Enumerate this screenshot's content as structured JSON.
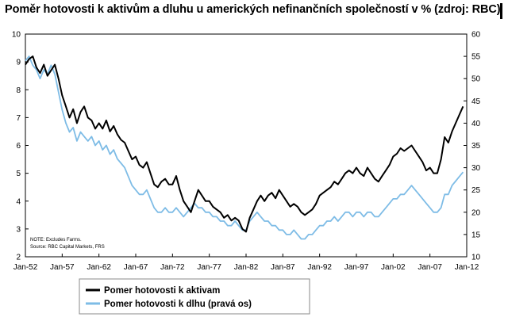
{
  "title": "Poměr hotovosti k aktivům a dluhu u amerických nefinančních společností v % (zdroj: RBC)",
  "chart_data": {
    "type": "line",
    "xlabel": "",
    "ylabel": "",
    "x_range": [
      1952,
      2012
    ],
    "x_ticks": [
      "Jan-52",
      "Jan-57",
      "Jan-62",
      "Jan-67",
      "Jan-72",
      "Jan-77",
      "Jan-82",
      "Jan-87",
      "Jan-92",
      "Jan-97",
      "Jan-02",
      "Jan-07",
      "Jan-12"
    ],
    "ylim_left": [
      2,
      10
    ],
    "ylim_right": [
      10,
      60
    ],
    "y_ticks_left": [
      "2",
      "3",
      "4",
      "5",
      "6",
      "7",
      "8",
      "9",
      "10"
    ],
    "y_ticks_right": [
      "10",
      "15",
      "20",
      "25",
      "30",
      "35",
      "40",
      "45",
      "50",
      "55",
      "60"
    ],
    "grid": false,
    "legend_position": "bottom-center",
    "note_lines": [
      "NOTE: Excludes Farms.",
      "Source: RBC Capital Markets, FRS"
    ],
    "series": [
      {
        "name": "Pomer hotovosti k aktivam",
        "axis": "left",
        "color": "#000000",
        "points": [
          [
            1952.0,
            8.9
          ],
          [
            1952.5,
            9.1
          ],
          [
            1953.0,
            9.2
          ],
          [
            1953.5,
            8.8
          ],
          [
            1954.0,
            8.6
          ],
          [
            1954.5,
            8.9
          ],
          [
            1955.0,
            8.5
          ],
          [
            1955.5,
            8.7
          ],
          [
            1956.0,
            8.9
          ],
          [
            1956.5,
            8.4
          ],
          [
            1957.0,
            7.8
          ],
          [
            1957.5,
            7.4
          ],
          [
            1958.0,
            7.0
          ],
          [
            1958.5,
            7.3
          ],
          [
            1959.0,
            6.8
          ],
          [
            1959.5,
            7.2
          ],
          [
            1960.0,
            7.4
          ],
          [
            1960.5,
            7.0
          ],
          [
            1961.0,
            6.9
          ],
          [
            1961.5,
            6.6
          ],
          [
            1962.0,
            6.8
          ],
          [
            1962.5,
            6.6
          ],
          [
            1963.0,
            6.9
          ],
          [
            1963.5,
            6.5
          ],
          [
            1964.0,
            6.7
          ],
          [
            1964.5,
            6.4
          ],
          [
            1965.0,
            6.2
          ],
          [
            1965.5,
            6.1
          ],
          [
            1966.0,
            5.8
          ],
          [
            1966.5,
            5.5
          ],
          [
            1967.0,
            5.6
          ],
          [
            1967.5,
            5.3
          ],
          [
            1968.0,
            5.2
          ],
          [
            1968.5,
            5.4
          ],
          [
            1969.0,
            5.0
          ],
          [
            1969.5,
            4.6
          ],
          [
            1970.0,
            4.5
          ],
          [
            1970.5,
            4.7
          ],
          [
            1971.0,
            4.8
          ],
          [
            1971.5,
            4.6
          ],
          [
            1972.0,
            4.6
          ],
          [
            1972.5,
            4.9
          ],
          [
            1973.0,
            4.4
          ],
          [
            1973.5,
            4.0
          ],
          [
            1974.0,
            3.8
          ],
          [
            1974.5,
            3.6
          ],
          [
            1975.0,
            4.0
          ],
          [
            1975.5,
            4.4
          ],
          [
            1976.0,
            4.2
          ],
          [
            1976.5,
            4.0
          ],
          [
            1977.0,
            4.0
          ],
          [
            1977.5,
            3.8
          ],
          [
            1978.0,
            3.7
          ],
          [
            1978.5,
            3.6
          ],
          [
            1979.0,
            3.4
          ],
          [
            1979.5,
            3.5
          ],
          [
            1980.0,
            3.3
          ],
          [
            1980.5,
            3.4
          ],
          [
            1981.0,
            3.3
          ],
          [
            1981.5,
            3.0
          ],
          [
            1982.0,
            2.9
          ],
          [
            1982.5,
            3.4
          ],
          [
            1983.0,
            3.7
          ],
          [
            1983.5,
            4.0
          ],
          [
            1984.0,
            4.2
          ],
          [
            1984.5,
            4.0
          ],
          [
            1985.0,
            4.2
          ],
          [
            1985.5,
            4.3
          ],
          [
            1986.0,
            4.1
          ],
          [
            1986.5,
            4.4
          ],
          [
            1987.0,
            4.2
          ],
          [
            1987.5,
            4.0
          ],
          [
            1988.0,
            3.8
          ],
          [
            1988.5,
            3.9
          ],
          [
            1989.0,
            3.8
          ],
          [
            1989.5,
            3.6
          ],
          [
            1990.0,
            3.5
          ],
          [
            1990.5,
            3.6
          ],
          [
            1991.0,
            3.7
          ],
          [
            1991.5,
            3.9
          ],
          [
            1992.0,
            4.2
          ],
          [
            1992.5,
            4.3
          ],
          [
            1993.0,
            4.4
          ],
          [
            1993.5,
            4.5
          ],
          [
            1994.0,
            4.7
          ],
          [
            1994.5,
            4.6
          ],
          [
            1995.0,
            4.8
          ],
          [
            1995.5,
            5.0
          ],
          [
            1996.0,
            5.1
          ],
          [
            1996.5,
            5.0
          ],
          [
            1997.0,
            5.2
          ],
          [
            1997.5,
            5.0
          ],
          [
            1998.0,
            4.9
          ],
          [
            1998.5,
            5.2
          ],
          [
            1999.0,
            5.0
          ],
          [
            1999.5,
            4.8
          ],
          [
            2000.0,
            4.7
          ],
          [
            2000.5,
            4.9
          ],
          [
            2001.0,
            5.1
          ],
          [
            2001.5,
            5.3
          ],
          [
            2002.0,
            5.6
          ],
          [
            2002.5,
            5.7
          ],
          [
            2003.0,
            5.9
          ],
          [
            2003.5,
            5.8
          ],
          [
            2004.0,
            5.9
          ],
          [
            2004.5,
            6.0
          ],
          [
            2005.0,
            5.8
          ],
          [
            2005.5,
            5.6
          ],
          [
            2006.0,
            5.4
          ],
          [
            2006.5,
            5.1
          ],
          [
            2007.0,
            5.2
          ],
          [
            2007.5,
            5.0
          ],
          [
            2008.0,
            5.0
          ],
          [
            2008.5,
            5.5
          ],
          [
            2009.0,
            6.3
          ],
          [
            2009.5,
            6.1
          ],
          [
            2010.0,
            6.5
          ],
          [
            2010.5,
            6.8
          ],
          [
            2011.0,
            7.1
          ],
          [
            2011.5,
            7.4
          ]
        ]
      },
      {
        "name": "Pomer hotovosti k dlhu (pravá os)",
        "axis": "right",
        "color": "#7ebce6",
        "points": [
          [
            1952.0,
            54
          ],
          [
            1952.5,
            55
          ],
          [
            1953.0,
            53
          ],
          [
            1953.5,
            52
          ],
          [
            1954.0,
            50
          ],
          [
            1954.5,
            52
          ],
          [
            1955.0,
            51
          ],
          [
            1955.5,
            53
          ],
          [
            1956.0,
            51
          ],
          [
            1956.5,
            47
          ],
          [
            1957.0,
            43
          ],
          [
            1957.5,
            40
          ],
          [
            1958.0,
            38
          ],
          [
            1958.5,
            39
          ],
          [
            1959.0,
            36
          ],
          [
            1959.5,
            38
          ],
          [
            1960.0,
            37
          ],
          [
            1960.5,
            36
          ],
          [
            1961.0,
            37
          ],
          [
            1961.5,
            35
          ],
          [
            1962.0,
            36
          ],
          [
            1962.5,
            34
          ],
          [
            1963.0,
            35
          ],
          [
            1963.5,
            33
          ],
          [
            1964.0,
            34
          ],
          [
            1964.5,
            32
          ],
          [
            1965.0,
            31
          ],
          [
            1965.5,
            30
          ],
          [
            1966.0,
            28
          ],
          [
            1966.5,
            26
          ],
          [
            1967.0,
            25
          ],
          [
            1967.5,
            24
          ],
          [
            1968.0,
            24
          ],
          [
            1968.5,
            25
          ],
          [
            1969.0,
            23
          ],
          [
            1969.5,
            21
          ],
          [
            1970.0,
            20
          ],
          [
            1970.5,
            20
          ],
          [
            1971.0,
            21
          ],
          [
            1971.5,
            20
          ],
          [
            1972.0,
            20
          ],
          [
            1972.5,
            21
          ],
          [
            1973.0,
            20
          ],
          [
            1973.5,
            19
          ],
          [
            1974.0,
            20
          ],
          [
            1974.5,
            21
          ],
          [
            1975.0,
            22
          ],
          [
            1975.5,
            21
          ],
          [
            1976.0,
            21
          ],
          [
            1976.5,
            20
          ],
          [
            1977.0,
            20
          ],
          [
            1977.5,
            19
          ],
          [
            1978.0,
            19
          ],
          [
            1978.5,
            18
          ],
          [
            1979.0,
            18
          ],
          [
            1979.5,
            17
          ],
          [
            1980.0,
            17
          ],
          [
            1980.5,
            18
          ],
          [
            1981.0,
            17
          ],
          [
            1981.5,
            16
          ],
          [
            1982.0,
            16
          ],
          [
            1982.5,
            18
          ],
          [
            1983.0,
            19
          ],
          [
            1983.5,
            20
          ],
          [
            1984.0,
            19
          ],
          [
            1984.5,
            18
          ],
          [
            1985.0,
            18
          ],
          [
            1985.5,
            17
          ],
          [
            1986.0,
            17
          ],
          [
            1986.5,
            16
          ],
          [
            1987.0,
            16
          ],
          [
            1987.5,
            15
          ],
          [
            1988.0,
            15
          ],
          [
            1988.5,
            16
          ],
          [
            1989.0,
            15
          ],
          [
            1989.5,
            14
          ],
          [
            1990.0,
            14
          ],
          [
            1990.5,
            15
          ],
          [
            1991.0,
            15
          ],
          [
            1991.5,
            16
          ],
          [
            1992.0,
            17
          ],
          [
            1992.5,
            17
          ],
          [
            1993.0,
            18
          ],
          [
            1993.5,
            18
          ],
          [
            1994.0,
            19
          ],
          [
            1994.5,
            18
          ],
          [
            1995.0,
            19
          ],
          [
            1995.5,
            20
          ],
          [
            1996.0,
            20
          ],
          [
            1996.5,
            19
          ],
          [
            1997.0,
            20
          ],
          [
            1997.5,
            20
          ],
          [
            1998.0,
            19
          ],
          [
            1998.5,
            20
          ],
          [
            1999.0,
            20
          ],
          [
            1999.5,
            19
          ],
          [
            2000.0,
            19
          ],
          [
            2000.5,
            20
          ],
          [
            2001.0,
            21
          ],
          [
            2001.5,
            22
          ],
          [
            2002.0,
            23
          ],
          [
            2002.5,
            23
          ],
          [
            2003.0,
            24
          ],
          [
            2003.5,
            24
          ],
          [
            2004.0,
            25
          ],
          [
            2004.5,
            26
          ],
          [
            2005.0,
            25
          ],
          [
            2005.5,
            24
          ],
          [
            2006.0,
            23
          ],
          [
            2006.5,
            22
          ],
          [
            2007.0,
            21
          ],
          [
            2007.5,
            20
          ],
          [
            2008.0,
            20
          ],
          [
            2008.5,
            21
          ],
          [
            2009.0,
            24
          ],
          [
            2009.5,
            24
          ],
          [
            2010.0,
            26
          ],
          [
            2010.5,
            27
          ],
          [
            2011.0,
            28
          ],
          [
            2011.5,
            29
          ]
        ]
      }
    ]
  }
}
